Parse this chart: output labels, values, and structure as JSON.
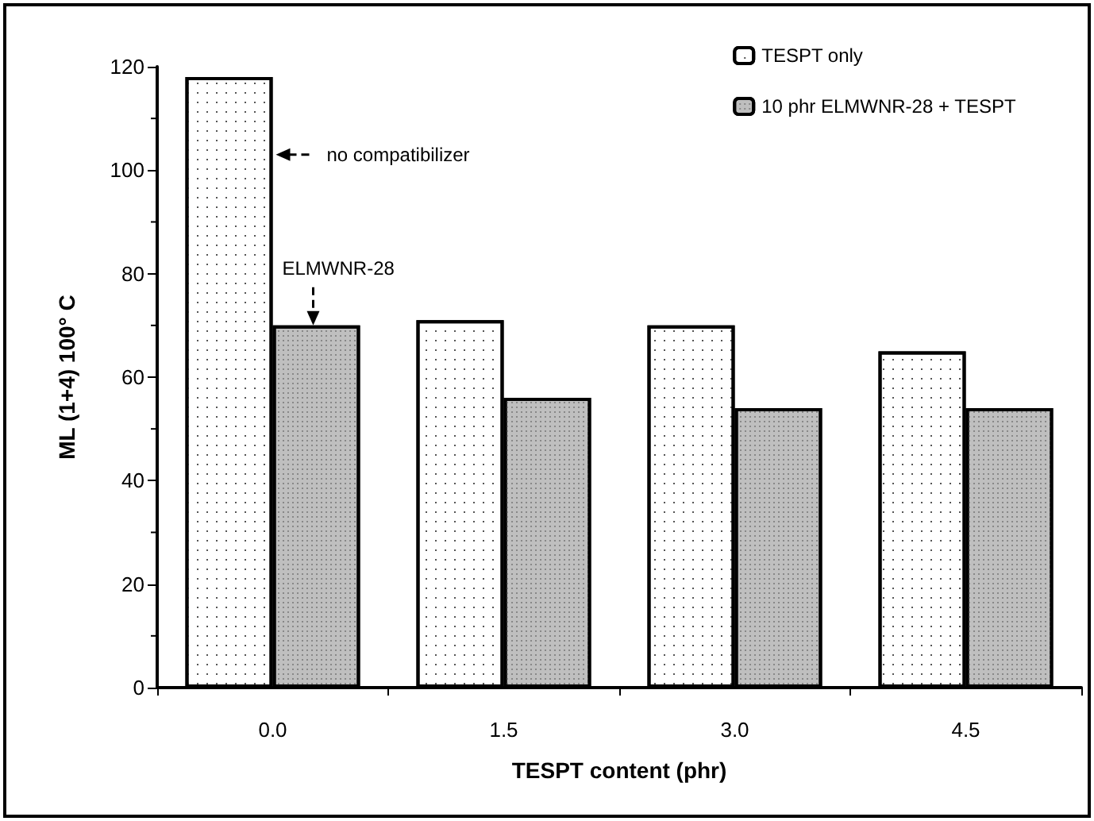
{
  "chart_data": {
    "type": "bar",
    "xlabel": "TESPT content (phr)",
    "ylabel": "ML (1+4) 100° C",
    "categories": [
      "0.0",
      "1.5",
      "3.0",
      "4.5"
    ],
    "series": [
      {
        "name": "TESPT only",
        "color": "#ffffff",
        "values": [
          118,
          71,
          70,
          65
        ]
      },
      {
        "name": "10 phr ELMWNR-28 + TESPT",
        "color": "#bfbfbf",
        "values": [
          70,
          56,
          54,
          54
        ]
      }
    ],
    "ylim": [
      0,
      120
    ],
    "yticks": [
      0,
      20,
      40,
      60,
      80,
      100,
      120
    ],
    "grid": false,
    "legend": "top right",
    "annotations": [
      {
        "text": "no compatibilizer",
        "x": "0.0",
        "y": 103
      },
      {
        "text": "ELMWNR-28",
        "x": "0.0",
        "y": 70
      }
    ]
  }
}
